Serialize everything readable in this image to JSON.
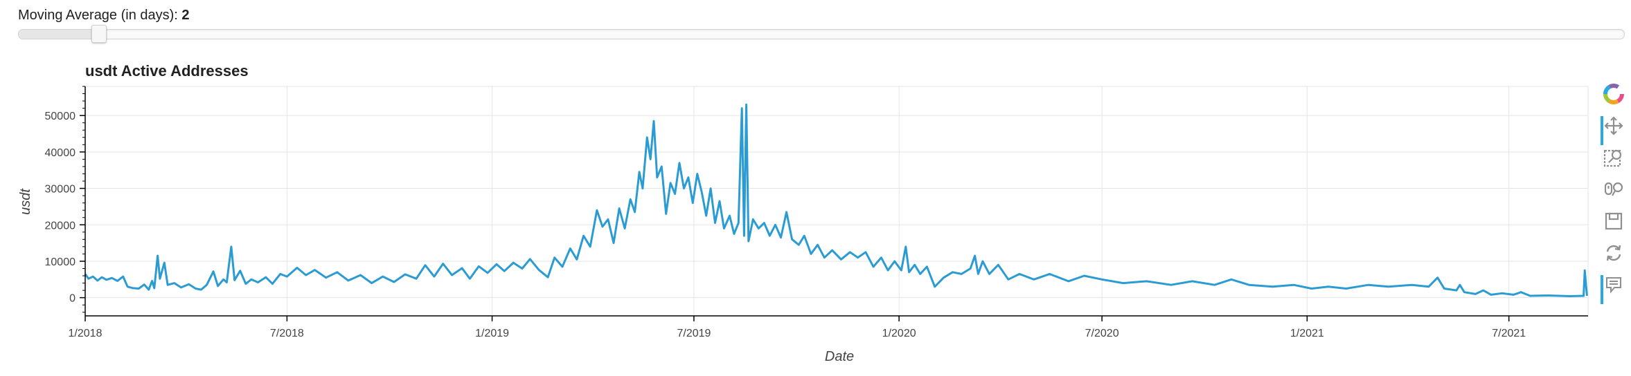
{
  "slider": {
    "label": "Moving Average (in days): ",
    "value": "2"
  },
  "toolbar": {
    "tools": [
      "bokeh-logo-icon",
      "pan-icon",
      "box-zoom-icon",
      "wheel-zoom-icon",
      "save-icon",
      "reset-icon",
      "hover-icon"
    ],
    "active": [
      "pan-icon",
      "hover-icon"
    ]
  },
  "colors": {
    "series": "#2b9bd3",
    "grid": "#e5e5e5",
    "axis": "#000000"
  },
  "chart_data": {
    "type": "line",
    "title": "usdt Active Addresses",
    "xlabel": "Date",
    "ylabel": "usdt",
    "x_range": [
      "2018-01-01",
      "2021-09-10"
    ],
    "y_range": [
      -5000,
      58000
    ],
    "y_ticks": [
      0,
      10000,
      20000,
      30000,
      40000,
      50000
    ],
    "x_ticks": [
      {
        "date": "2018-01-01",
        "label": "1/2018"
      },
      {
        "date": "2018-07-01",
        "label": "7/2018"
      },
      {
        "date": "2019-01-01",
        "label": "1/2019"
      },
      {
        "date": "2019-07-01",
        "label": "7/2019"
      },
      {
        "date": "2020-01-01",
        "label": "1/2020"
      },
      {
        "date": "2020-07-01",
        "label": "7/2020"
      },
      {
        "date": "2021-01-01",
        "label": "1/2021"
      },
      {
        "date": "2021-07-01",
        "label": "7/2021"
      }
    ],
    "grid": true,
    "series": [
      {
        "points": [
          [
            "2018-01-01",
            6500
          ],
          [
            "2018-01-04",
            5200
          ],
          [
            "2018-01-08",
            5800
          ],
          [
            "2018-01-12",
            4700
          ],
          [
            "2018-01-16",
            5600
          ],
          [
            "2018-01-20",
            4900
          ],
          [
            "2018-01-25",
            5400
          ],
          [
            "2018-01-30",
            4600
          ],
          [
            "2018-02-04",
            5800
          ],
          [
            "2018-02-08",
            3000
          ],
          [
            "2018-02-13",
            2600
          ],
          [
            "2018-02-18",
            2500
          ],
          [
            "2018-02-23",
            3600
          ],
          [
            "2018-02-27",
            2200
          ],
          [
            "2018-03-02",
            4600
          ],
          [
            "2018-03-04",
            2600
          ],
          [
            "2018-03-07",
            11500
          ],
          [
            "2018-03-09",
            5200
          ],
          [
            "2018-03-13",
            9600
          ],
          [
            "2018-03-16",
            3500
          ],
          [
            "2018-03-22",
            4000
          ],
          [
            "2018-03-28",
            2800
          ],
          [
            "2018-04-04",
            3700
          ],
          [
            "2018-04-10",
            2500
          ],
          [
            "2018-04-15",
            2200
          ],
          [
            "2018-04-20",
            3500
          ],
          [
            "2018-04-26",
            7200
          ],
          [
            "2018-04-30",
            3200
          ],
          [
            "2018-05-05",
            5000
          ],
          [
            "2018-05-08",
            4200
          ],
          [
            "2018-05-12",
            14000
          ],
          [
            "2018-05-15",
            4800
          ],
          [
            "2018-05-20",
            7400
          ],
          [
            "2018-05-25",
            3800
          ],
          [
            "2018-05-30",
            5000
          ],
          [
            "2018-06-05",
            4200
          ],
          [
            "2018-06-12",
            5600
          ],
          [
            "2018-06-18",
            3800
          ],
          [
            "2018-06-25",
            6500
          ],
          [
            "2018-07-01",
            5800
          ],
          [
            "2018-07-10",
            8200
          ],
          [
            "2018-07-18",
            6200
          ],
          [
            "2018-07-26",
            7600
          ],
          [
            "2018-08-05",
            5500
          ],
          [
            "2018-08-15",
            7000
          ],
          [
            "2018-08-25",
            4700
          ],
          [
            "2018-09-05",
            6200
          ],
          [
            "2018-09-15",
            4000
          ],
          [
            "2018-09-25",
            5800
          ],
          [
            "2018-10-05",
            4300
          ],
          [
            "2018-10-15",
            6400
          ],
          [
            "2018-10-25",
            5200
          ],
          [
            "2018-11-02",
            8900
          ],
          [
            "2018-11-10",
            5800
          ],
          [
            "2018-11-18",
            9300
          ],
          [
            "2018-11-26",
            6200
          ],
          [
            "2018-12-05",
            8100
          ],
          [
            "2018-12-12",
            5200
          ],
          [
            "2018-12-20",
            8600
          ],
          [
            "2018-12-28",
            6800
          ],
          [
            "2019-01-05",
            9200
          ],
          [
            "2019-01-12",
            7300
          ],
          [
            "2019-01-20",
            9600
          ],
          [
            "2019-01-28",
            8000
          ],
          [
            "2019-02-04",
            10600
          ],
          [
            "2019-02-12",
            7600
          ],
          [
            "2019-02-20",
            5600
          ],
          [
            "2019-02-26",
            11000
          ],
          [
            "2019-03-05",
            8500
          ],
          [
            "2019-03-12",
            13500
          ],
          [
            "2019-03-18",
            10500
          ],
          [
            "2019-03-24",
            17000
          ],
          [
            "2019-03-30",
            14000
          ],
          [
            "2019-04-05",
            24000
          ],
          [
            "2019-04-10",
            19500
          ],
          [
            "2019-04-15",
            21500
          ],
          [
            "2019-04-20",
            15000
          ],
          [
            "2019-04-25",
            24500
          ],
          [
            "2019-04-30",
            19000
          ],
          [
            "2019-05-05",
            27000
          ],
          [
            "2019-05-09",
            23500
          ],
          [
            "2019-05-13",
            34500
          ],
          [
            "2019-05-16",
            30000
          ],
          [
            "2019-05-20",
            44000
          ],
          [
            "2019-05-23",
            38000
          ],
          [
            "2019-05-26",
            48500
          ],
          [
            "2019-05-29",
            33000
          ],
          [
            "2019-06-02",
            36000
          ],
          [
            "2019-06-06",
            23000
          ],
          [
            "2019-06-10",
            31500
          ],
          [
            "2019-06-14",
            28500
          ],
          [
            "2019-06-18",
            37000
          ],
          [
            "2019-06-22",
            30000
          ],
          [
            "2019-06-26",
            33000
          ],
          [
            "2019-06-30",
            26000
          ],
          [
            "2019-07-04",
            34000
          ],
          [
            "2019-07-08",
            29000
          ],
          [
            "2019-07-12",
            22500
          ],
          [
            "2019-07-16",
            30000
          ],
          [
            "2019-07-20",
            20500
          ],
          [
            "2019-07-24",
            26500
          ],
          [
            "2019-07-28",
            19000
          ],
          [
            "2019-08-02",
            22500
          ],
          [
            "2019-08-06",
            17500
          ],
          [
            "2019-08-10",
            20500
          ],
          [
            "2019-08-13",
            52000
          ],
          [
            "2019-08-15",
            17000
          ],
          [
            "2019-08-17",
            53000
          ],
          [
            "2019-08-19",
            15500
          ],
          [
            "2019-08-23",
            21500
          ],
          [
            "2019-08-28",
            19000
          ],
          [
            "2019-09-02",
            20500
          ],
          [
            "2019-09-07",
            17000
          ],
          [
            "2019-09-12",
            20000
          ],
          [
            "2019-09-17",
            16500
          ],
          [
            "2019-09-22",
            23500
          ],
          [
            "2019-09-27",
            16000
          ],
          [
            "2019-10-03",
            14500
          ],
          [
            "2019-10-08",
            17000
          ],
          [
            "2019-10-14",
            12000
          ],
          [
            "2019-10-20",
            14500
          ],
          [
            "2019-10-26",
            11000
          ],
          [
            "2019-11-02",
            13000
          ],
          [
            "2019-11-10",
            10500
          ],
          [
            "2019-11-18",
            12500
          ],
          [
            "2019-11-25",
            11000
          ],
          [
            "2019-12-02",
            12500
          ],
          [
            "2019-12-09",
            8500
          ],
          [
            "2019-12-16",
            11000
          ],
          [
            "2019-12-22",
            7500
          ],
          [
            "2019-12-28",
            10000
          ],
          [
            "2020-01-03",
            7500
          ],
          [
            "2020-01-07",
            14000
          ],
          [
            "2020-01-10",
            7000
          ],
          [
            "2020-01-15",
            9000
          ],
          [
            "2020-01-20",
            6500
          ],
          [
            "2020-01-26",
            8500
          ],
          [
            "2020-02-02",
            3000
          ],
          [
            "2020-02-10",
            5500
          ],
          [
            "2020-02-18",
            7000
          ],
          [
            "2020-02-26",
            6500
          ],
          [
            "2020-03-05",
            8000
          ],
          [
            "2020-03-09",
            11500
          ],
          [
            "2020-03-12",
            6500
          ],
          [
            "2020-03-16",
            10000
          ],
          [
            "2020-03-22",
            6500
          ],
          [
            "2020-03-30",
            9000
          ],
          [
            "2020-04-08",
            5000
          ],
          [
            "2020-04-18",
            6500
          ],
          [
            "2020-05-01",
            5000
          ],
          [
            "2020-05-15",
            6500
          ],
          [
            "2020-06-01",
            4500
          ],
          [
            "2020-06-15",
            6000
          ],
          [
            "2020-07-01",
            5000
          ],
          [
            "2020-07-20",
            4000
          ],
          [
            "2020-08-10",
            4500
          ],
          [
            "2020-09-01",
            3500
          ],
          [
            "2020-09-20",
            4500
          ],
          [
            "2020-10-10",
            3500
          ],
          [
            "2020-10-25",
            5000
          ],
          [
            "2020-11-10",
            3500
          ],
          [
            "2020-12-01",
            3000
          ],
          [
            "2020-12-20",
            3500
          ],
          [
            "2021-01-05",
            2500
          ],
          [
            "2021-01-20",
            3000
          ],
          [
            "2021-02-05",
            2500
          ],
          [
            "2021-02-25",
            3500
          ],
          [
            "2021-03-15",
            3000
          ],
          [
            "2021-04-05",
            3500
          ],
          [
            "2021-04-20",
            3000
          ],
          [
            "2021-04-28",
            5500
          ],
          [
            "2021-05-04",
            2500
          ],
          [
            "2021-05-15",
            2000
          ],
          [
            "2021-05-18",
            3500
          ],
          [
            "2021-05-22",
            1500
          ],
          [
            "2021-06-01",
            1000
          ],
          [
            "2021-06-08",
            2000
          ],
          [
            "2021-06-15",
            800
          ],
          [
            "2021-06-25",
            1200
          ],
          [
            "2021-07-05",
            800
          ],
          [
            "2021-07-12",
            1500
          ],
          [
            "2021-07-20",
            500
          ],
          [
            "2021-08-05",
            600
          ],
          [
            "2021-08-25",
            400
          ],
          [
            "2021-09-06",
            500
          ],
          [
            "2021-09-07",
            7500
          ],
          [
            "2021-09-09",
            500
          ]
        ]
      }
    ]
  }
}
